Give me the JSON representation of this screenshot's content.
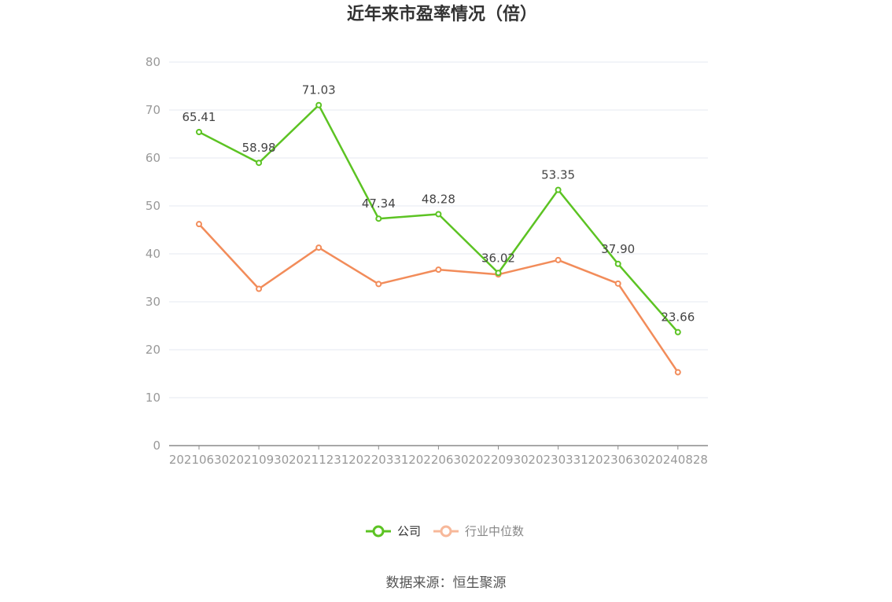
{
  "chart_data": {
    "type": "line",
    "title": "近年来市盈率情况（倍）",
    "categories": [
      "20210630",
      "20210930",
      "20211231",
      "20220331",
      "20220630",
      "20220930",
      "20230331",
      "20230630",
      "20240828"
    ],
    "series": [
      {
        "name": "公司",
        "color": "#5cc323",
        "values": [
          65.41,
          58.98,
          71.03,
          47.34,
          48.28,
          36.02,
          53.35,
          37.9,
          23.66
        ],
        "labels": [
          "65.41",
          "58.98",
          "71.03",
          "47.34",
          "48.28",
          "36.02",
          "53.35",
          "37.90",
          "23.66"
        ]
      },
      {
        "name": "行业中位数",
        "color": "#f28c5a",
        "values": [
          46.2,
          32.7,
          41.3,
          33.7,
          36.7,
          35.7,
          38.7,
          33.8,
          15.3
        ]
      }
    ],
    "ylim": [
      0,
      80
    ],
    "yticks": [
      0,
      10,
      20,
      30,
      40,
      50,
      60,
      70,
      80
    ],
    "grid": true,
    "legend_position": "bottom-center"
  },
  "source_note": "数据来源：恒生聚源"
}
